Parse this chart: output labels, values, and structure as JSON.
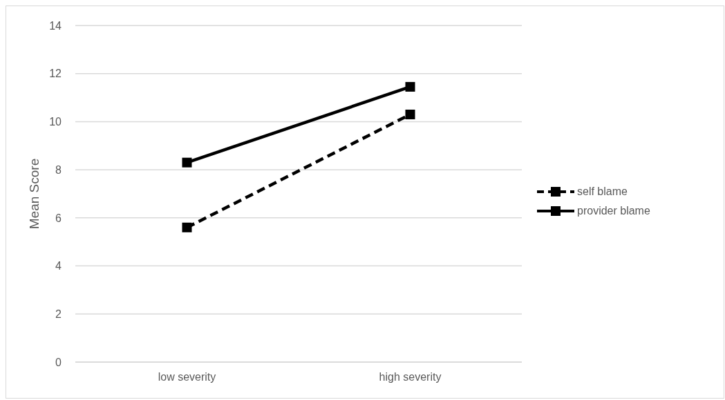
{
  "chart_data": {
    "type": "line",
    "ylabel": "Mean Score",
    "categories": [
      "low severity",
      "high severity"
    ],
    "series": [
      {
        "name": "self blame",
        "color": "#000000",
        "values": [
          5.6,
          10.3
        ],
        "line_style": "dashed"
      },
      {
        "name": "provider blame",
        "color": "#000000",
        "values": [
          8.3,
          11.45
        ],
        "line_style": "solid"
      }
    ],
    "ylim": [
      0,
      14
    ],
    "yticks": [
      0,
      2,
      4,
      6,
      8,
      10,
      12,
      14
    ],
    "grid": "y",
    "legend": "right",
    "marker": "square"
  }
}
